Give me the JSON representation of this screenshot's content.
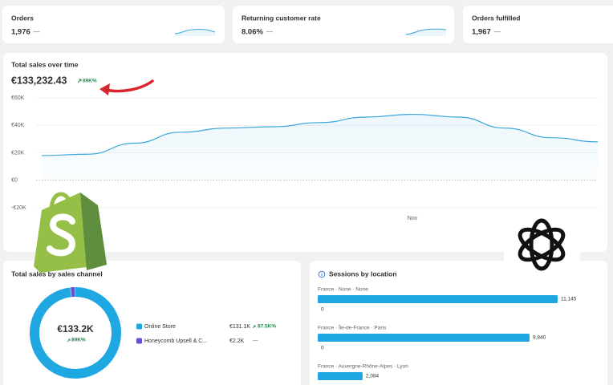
{
  "kpis": [
    {
      "title": "Orders",
      "value": "1,976",
      "change": "—"
    },
    {
      "title": "Returning customer rate",
      "value": "8.06%",
      "change": "—"
    },
    {
      "title": "Orders fulfilled",
      "value": "1,967",
      "change": "—"
    }
  ],
  "chart_data": [
    {
      "type": "line",
      "title": "Total sales over time",
      "total": "€133,232.43",
      "change": "89K%",
      "categories": [
        null,
        null,
        null,
        null,
        null,
        null,
        null,
        null,
        "Nov",
        null,
        null,
        null,
        null
      ],
      "values": [
        18000,
        19000,
        27000,
        35000,
        38000,
        39000,
        42000,
        46000,
        48000,
        46000,
        38000,
        31000,
        28000
      ],
      "color": "#3ba6dc",
      "ylim": [
        -20000,
        60000
      ],
      "yticks": [
        {
          "value": 60000,
          "label": "€60K"
        },
        {
          "value": 40000,
          "label": "€40K"
        },
        {
          "value": 20000,
          "label": "€20K"
        },
        {
          "value": 0,
          "label": "€0"
        },
        {
          "value": -20000,
          "label": "-€20K"
        }
      ],
      "grid": true
    },
    {
      "type": "donut",
      "title": "Total sales by sales channel",
      "center_value": "€133.2K",
      "center_change": "89K%",
      "categories": [
        "Online Store",
        "Honeycomb Upsell & C..."
      ],
      "values": [
        131100,
        2200
      ],
      "value_labels": [
        "€131.1K",
        "€2.2K"
      ],
      "changes": [
        "87.5K%",
        "—"
      ],
      "colors": [
        "#1fa7e1",
        "#6a4fd6"
      ]
    },
    {
      "type": "hbar",
      "title": "Sessions by location",
      "categories": [
        "France · None · None",
        "France · Île-de-France · Paris",
        "France · Auvergne-Rhône-Alpes · Lyon"
      ],
      "values": [
        11145,
        9840,
        2084
      ],
      "value_labels": [
        "11,145",
        "9,840",
        "2,084"
      ],
      "previous_values": [
        0,
        0,
        null
      ],
      "color": "#1fa7e1"
    }
  ]
}
